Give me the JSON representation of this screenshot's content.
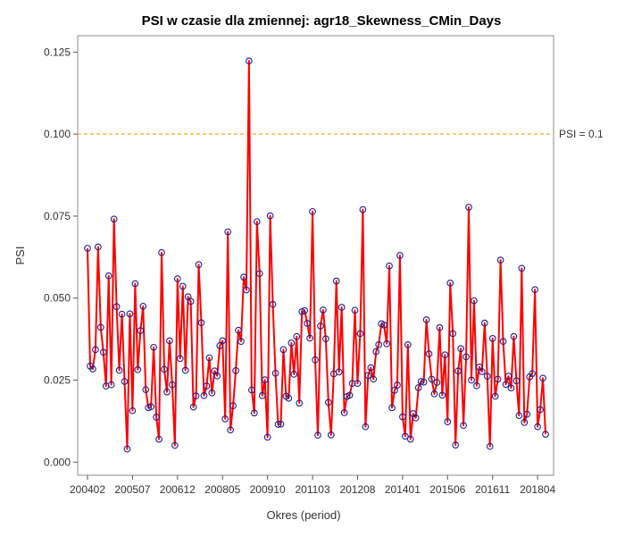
{
  "chart_data": {
    "type": "line",
    "title": "PSI w czasie dla zmiennej: agr18_Skewness_CMin_Days",
    "xlabel": "Okres (period)",
    "ylabel": "PSI",
    "ylim": [
      -0.004,
      0.13
    ],
    "yticks": [
      "0.000",
      "0.025",
      "0.050",
      "0.075",
      "0.100",
      "0.125"
    ],
    "ytick_values": [
      0,
      0.025,
      0.05,
      0.075,
      0.1,
      0.125
    ],
    "xtick_labels": [
      "200402",
      "200507",
      "200612",
      "200805",
      "200910",
      "201103",
      "201208",
      "201401",
      "201506",
      "201611",
      "201804"
    ],
    "xtick_index": [
      0,
      17,
      34,
      51,
      68,
      85,
      102,
      119,
      136,
      153,
      170
    ],
    "reference_line": {
      "value": 0.1,
      "label": "PSI = 0.1",
      "color": "#f5b947"
    },
    "series_color": "#ff0000",
    "marker_color": "#1f1f8f",
    "grid": false,
    "series": [
      {
        "values": [
          0.0652,
          0.0293,
          0.0284,
          0.0343,
          0.0656,
          0.0411,
          0.0335,
          0.0232,
          0.0568,
          0.0236,
          0.0741,
          0.0474,
          0.028,
          0.0451,
          0.0246,
          0.004,
          0.0452,
          0.0157,
          0.0544,
          0.0282,
          0.0401,
          0.0475,
          0.0221,
          0.0166,
          0.0169,
          0.035,
          0.0137,
          0.007,
          0.0639,
          0.0283,
          0.0214,
          0.037,
          0.0236,
          0.0051,
          0.0559,
          0.0316,
          0.0536,
          0.028,
          0.0504,
          0.049,
          0.0168,
          0.0202,
          0.0602,
          0.0425,
          0.0203,
          0.0232,
          0.0318,
          0.0211,
          0.0278,
          0.0263,
          0.0355,
          0.037,
          0.0132,
          0.0702,
          0.0098,
          0.0172,
          0.0279,
          0.0402,
          0.0368,
          0.0564,
          0.0525,
          0.1223,
          0.022,
          0.015,
          0.0733,
          0.0575,
          0.0203,
          0.0251,
          0.0076,
          0.0751,
          0.0481,
          0.0271,
          0.0115,
          0.0116,
          0.0343,
          0.0201,
          0.0195,
          0.0363,
          0.0268,
          0.0383,
          0.018,
          0.0459,
          0.0462,
          0.0423,
          0.0378,
          0.0764,
          0.0312,
          0.0082,
          0.0415,
          0.0464,
          0.0376,
          0.0182,
          0.0083,
          0.0269,
          0.0552,
          0.0275,
          0.0472,
          0.0151,
          0.02,
          0.0204,
          0.024,
          0.0463,
          0.024,
          0.0392,
          0.077,
          0.0108,
          0.0264,
          0.0288,
          0.0253,
          0.0337,
          0.0358,
          0.0422,
          0.0418,
          0.0361,
          0.0598,
          0.0166,
          0.0219,
          0.0235,
          0.063,
          0.0138,
          0.0079,
          0.0358,
          0.007,
          0.0148,
          0.0135,
          0.0227,
          0.0246,
          0.0244,
          0.0434,
          0.033,
          0.0253,
          0.0208,
          0.0243,
          0.041,
          0.0204,
          0.0327,
          0.0123,
          0.0546,
          0.0392,
          0.0052,
          0.0278,
          0.0346,
          0.0112,
          0.0321,
          0.0777,
          0.025,
          0.0492,
          0.0233,
          0.029,
          0.0276,
          0.0424,
          0.0262,
          0.0048,
          0.0377,
          0.0201,
          0.0253,
          0.0616,
          0.0368,
          0.0237,
          0.0262,
          0.0226,
          0.0383,
          0.0248,
          0.0142,
          0.0591,
          0.0121,
          0.0146,
          0.026,
          0.027,
          0.0526,
          0.0108,
          0.016,
          0.0256,
          0.0085
        ]
      }
    ]
  }
}
